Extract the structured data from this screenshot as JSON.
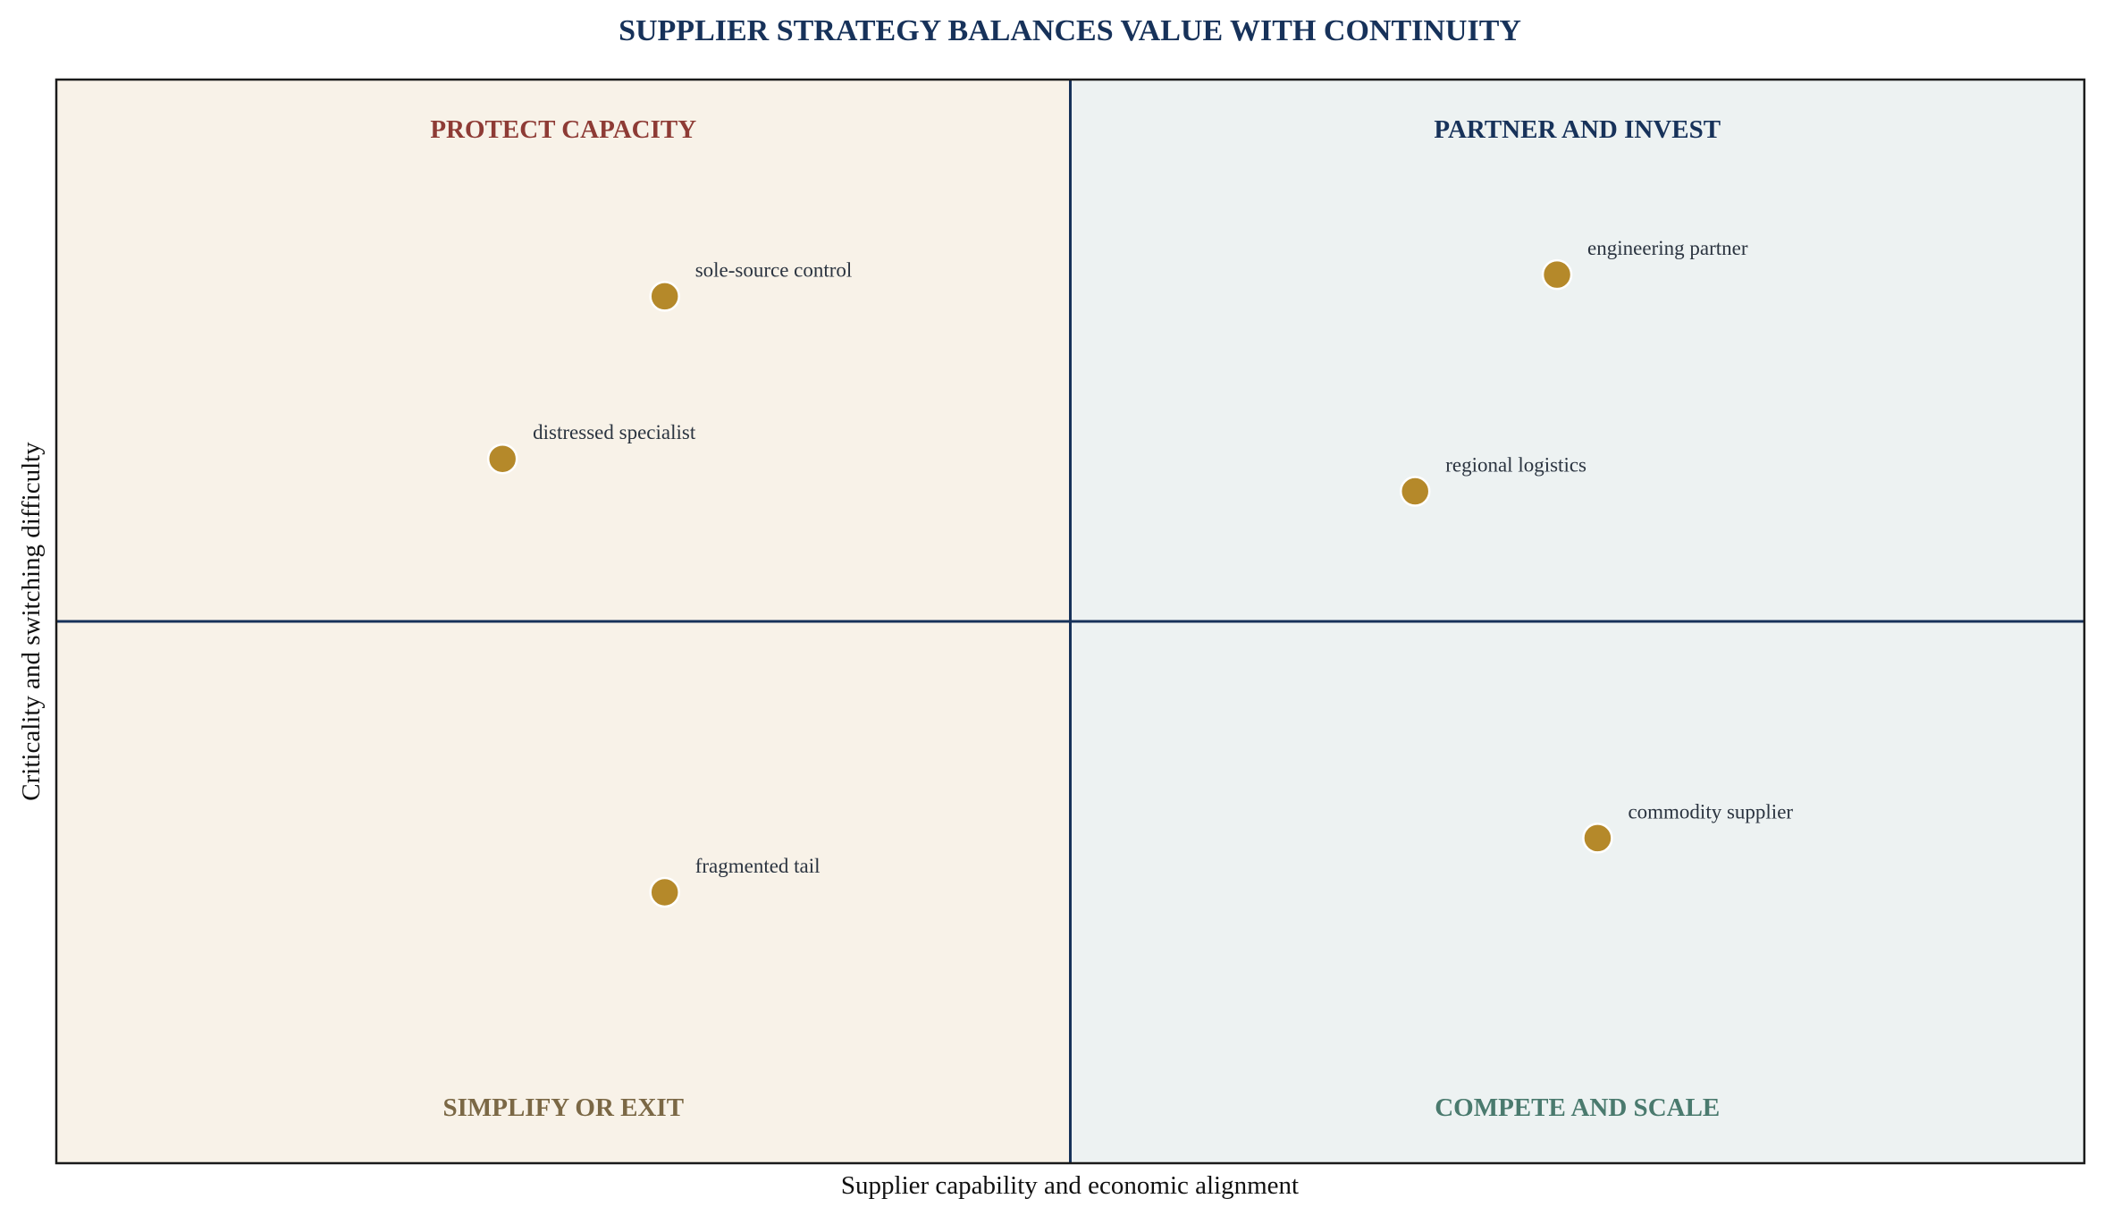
{
  "chart_data": {
    "type": "scatter",
    "title": "SUPPLIER STRATEGY BALANCES VALUE WITH CONTINUITY",
    "xlabel": "Supplier capability and economic alignment",
    "ylabel": "Criticality and switching difficulty",
    "xlim": [
      0,
      10
    ],
    "ylim": [
      0,
      10
    ],
    "x_divider": 5,
    "y_divider": 5,
    "grid": false,
    "legend": "none",
    "quadrants": [
      {
        "id": "top-left",
        "label": "PROTECT CAPACITY",
        "fill": "#f8f2e8",
        "label_color": "#8e3b35",
        "label_position": "top"
      },
      {
        "id": "top-right",
        "label": "PARTNER AND INVEST",
        "fill": "#edf2f2",
        "label_color": "#17325a",
        "label_position": "top"
      },
      {
        "id": "bottom-left",
        "label": "SIMPLIFY OR EXIT",
        "fill": "#f8f2e8",
        "label_color": "#7b6845",
        "label_position": "bottom"
      },
      {
        "id": "bottom-right",
        "label": "COMPETE AND SCALE",
        "fill": "#edf2f2",
        "label_color": "#4a7a6e",
        "label_position": "bottom"
      }
    ],
    "points": [
      {
        "label": "sole-source control",
        "x": 3.0,
        "y": 8.0
      },
      {
        "label": "distressed specialist",
        "x": 2.2,
        "y": 6.5
      },
      {
        "label": "engineering partner",
        "x": 7.4,
        "y": 8.2
      },
      {
        "label": "regional logistics",
        "x": 6.7,
        "y": 6.2
      },
      {
        "label": "commodity supplier",
        "x": 7.6,
        "y": 3.0
      },
      {
        "label": "fragmented tail",
        "x": 3.0,
        "y": 2.5
      }
    ],
    "colors": {
      "title": "#17325a",
      "divider": "#17325a",
      "frame": "#1a1a1a",
      "point_fill": "#b5892a",
      "point_stroke": "#ffffff",
      "point_label": "#2b3440",
      "axis_label": "#111111"
    }
  }
}
